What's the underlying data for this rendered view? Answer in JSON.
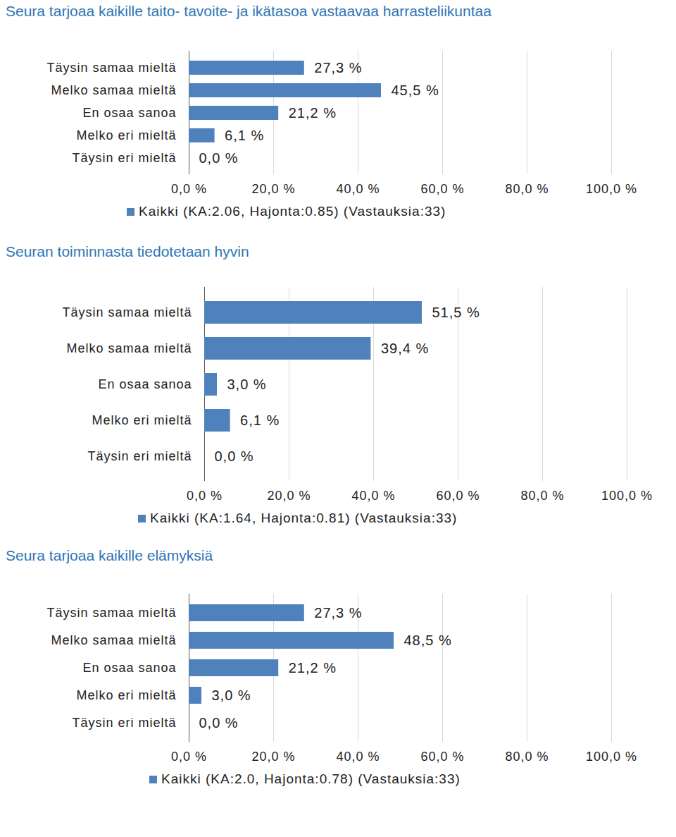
{
  "chart_data": [
    {
      "type": "bar",
      "orientation": "horizontal",
      "title": "Seura tarjoaa kaikille taito- tavoite- ja ikätasoa vastaavaa harrasteliikuntaa",
      "categories": [
        "Täysin samaa mieltä",
        "Melko samaa mieltä",
        "En osaa sanoa",
        "Melko eri mieltä",
        "Täysin eri mieltä"
      ],
      "series": [
        {
          "name": "Kaikki (KA:2.06, Hajonta:0.85) (Vastauksia:33)",
          "color": "#4f81bd",
          "values": [
            27.3,
            45.5,
            21.2,
            6.1,
            0.0
          ],
          "value_labels": [
            "27,3 %",
            "45,5 %",
            "21,2 %",
            "6,1 %",
            "0,0 %"
          ]
        }
      ],
      "xlim": [
        0,
        100
      ],
      "xticks": [
        {
          "value": 0,
          "label": "0,0 %"
        },
        {
          "value": 20,
          "label": "20,0 %"
        },
        {
          "value": 40,
          "label": "40,0 %"
        },
        {
          "value": 60,
          "label": "60,0 %"
        },
        {
          "value": 80,
          "label": "80,0 %"
        },
        {
          "value": 100,
          "label": "100,0 %"
        }
      ],
      "grid": true,
      "data_labels": true,
      "legend": "bottom"
    },
    {
      "type": "bar",
      "orientation": "horizontal",
      "title": "Seuran toiminnasta tiedotetaan hyvin",
      "categories": [
        "Täysin samaa mieltä",
        "Melko samaa mieltä",
        "En osaa sanoa",
        "Melko eri mieltä",
        "Täysin eri mieltä"
      ],
      "series": [
        {
          "name": "Kaikki (KA:1.64, Hajonta:0.81) (Vastauksia:33)",
          "color": "#4f81bd",
          "values": [
            51.5,
            39.4,
            3.0,
            6.1,
            0.0
          ],
          "value_labels": [
            "51,5 %",
            "39,4 %",
            "3,0 %",
            "6,1 %",
            "0,0 %"
          ]
        }
      ],
      "xlim": [
        0,
        100
      ],
      "xticks": [
        {
          "value": 0,
          "label": "0,0 %"
        },
        {
          "value": 20,
          "label": "20,0 %"
        },
        {
          "value": 40,
          "label": "40,0 %"
        },
        {
          "value": 60,
          "label": "60,0 %"
        },
        {
          "value": 80,
          "label": "80,0 %"
        },
        {
          "value": 100,
          "label": "100,0 %"
        }
      ],
      "grid": true,
      "data_labels": true,
      "legend": "bottom"
    },
    {
      "type": "bar",
      "orientation": "horizontal",
      "title": "Seura tarjoaa kaikille elämyksiä",
      "categories": [
        "Täysin samaa mieltä",
        "Melko samaa mieltä",
        "En osaa sanoa",
        "Melko eri mieltä",
        "Täysin eri mieltä"
      ],
      "series": [
        {
          "name": "Kaikki (KA:2.0, Hajonta:0.78) (Vastauksia:33)",
          "color": "#4f81bd",
          "values": [
            27.3,
            48.5,
            21.2,
            3.0,
            0.0
          ],
          "value_labels": [
            "27,3 %",
            "48,5 %",
            "21,2 %",
            "3,0 %",
            "0,0 %"
          ]
        }
      ],
      "xlim": [
        0,
        100
      ],
      "xticks": [
        {
          "value": 0,
          "label": "0,0 %"
        },
        {
          "value": 20,
          "label": "20,0 %"
        },
        {
          "value": 40,
          "label": "40,0 %"
        },
        {
          "value": 60,
          "label": "60,0 %"
        },
        {
          "value": 80,
          "label": "80,0 %"
        },
        {
          "value": 100,
          "label": "100,0 %"
        }
      ],
      "grid": true,
      "data_labels": true,
      "legend": "bottom"
    }
  ]
}
